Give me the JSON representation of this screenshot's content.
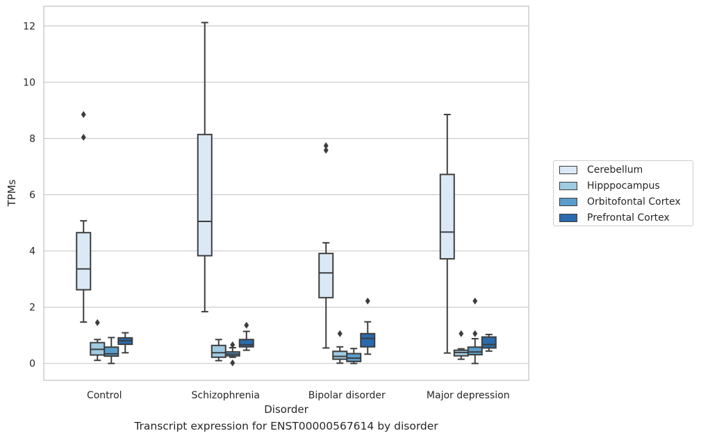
{
  "caption": "Transcript expression for ENST00000567614 by disorder",
  "chart_data": {
    "type": "box",
    "title": "",
    "xlabel": "Disorder",
    "ylabel": "TPMs",
    "ylim": [
      -0.6,
      12.7
    ],
    "yticks": [
      0,
      2,
      4,
      6,
      8,
      10,
      12
    ],
    "grid": "horizontal",
    "legend_position": "right",
    "categories": [
      "Control",
      "Schizophrenia",
      "Bipolar disorder",
      "Major depression"
    ],
    "series": [
      {
        "name": "Cerebellum",
        "color": "#dbe9f6",
        "boxes": [
          {
            "whisker_low": 1.47,
            "q1": 2.62,
            "median": 3.36,
            "q3": 4.65,
            "whisker_high": 5.07,
            "outliers": [
              8.04,
              8.85
            ]
          },
          {
            "whisker_low": 1.84,
            "q1": 3.83,
            "median": 5.05,
            "q3": 8.14,
            "whisker_high": 12.12,
            "outliers": []
          },
          {
            "whisker_low": 0.55,
            "q1": 2.34,
            "median": 3.22,
            "q3": 3.91,
            "whisker_high": 4.29,
            "outliers": [
              7.58,
              7.74
            ]
          },
          {
            "whisker_low": 0.37,
            "q1": 3.72,
            "median": 4.67,
            "q3": 6.72,
            "whisker_high": 8.85,
            "outliers": []
          }
        ]
      },
      {
        "name": "Hipppocampus",
        "color": "#a0cbe2",
        "boxes": [
          {
            "whisker_low": 0.11,
            "q1": 0.3,
            "median": 0.5,
            "q3": 0.74,
            "whisker_high": 0.85,
            "outliers": [
              1.45
            ]
          },
          {
            "whisker_low": 0.1,
            "q1": 0.22,
            "median": 0.38,
            "q3": 0.64,
            "whisker_high": 0.85,
            "outliers": []
          },
          {
            "whisker_low": 0.01,
            "q1": 0.15,
            "median": 0.25,
            "q3": 0.43,
            "whisker_high": 0.59,
            "outliers": [
              1.06
            ]
          },
          {
            "whisker_low": 0.15,
            "q1": 0.27,
            "median": 0.39,
            "q3": 0.47,
            "whisker_high": 0.52,
            "outliers": [
              1.06
            ]
          }
        ]
      },
      {
        "name": "Orbitofontal Cortex",
        "color": "#5a9dcc",
        "boxes": [
          {
            "whisker_low": 0.0,
            "q1": 0.26,
            "median": 0.34,
            "q3": 0.58,
            "whisker_high": 0.92,
            "outliers": []
          },
          {
            "whisker_low": 0.22,
            "q1": 0.27,
            "median": 0.33,
            "q3": 0.41,
            "whisker_high": 0.56,
            "outliers": [
              0.02,
              0.66
            ]
          },
          {
            "whisker_low": 0.0,
            "q1": 0.07,
            "median": 0.19,
            "q3": 0.35,
            "whisker_high": 0.53,
            "outliers": []
          },
          {
            "whisker_low": 0.0,
            "q1": 0.31,
            "median": 0.41,
            "q3": 0.58,
            "whisker_high": 0.88,
            "outliers": [
              1.06,
              2.22
            ]
          }
        ]
      },
      {
        "name": "Prefrontal Cortex",
        "color": "#2a6aad",
        "boxes": [
          {
            "whisker_low": 0.38,
            "q1": 0.68,
            "median": 0.81,
            "q3": 0.91,
            "whisker_high": 1.09,
            "outliers": []
          },
          {
            "whisker_low": 0.47,
            "q1": 0.59,
            "median": 0.66,
            "q3": 0.85,
            "whisker_high": 1.14,
            "outliers": [
              1.36
            ]
          },
          {
            "whisker_low": 0.33,
            "q1": 0.59,
            "median": 0.89,
            "q3": 1.06,
            "whisker_high": 1.48,
            "outliers": [
              2.22
            ]
          },
          {
            "whisker_low": 0.44,
            "q1": 0.55,
            "median": 0.67,
            "q3": 0.94,
            "whisker_high": 1.03,
            "outliers": []
          }
        ]
      }
    ]
  }
}
